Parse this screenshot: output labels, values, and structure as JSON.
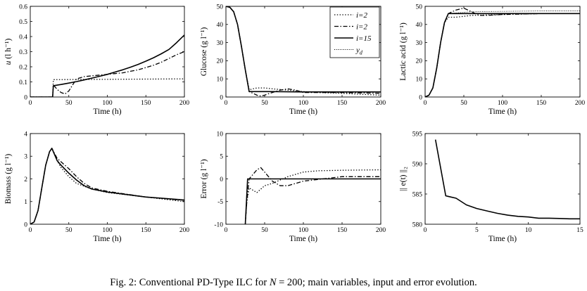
{
  "figure": {
    "caption_prefix": "Fig. 2:",
    "caption_pre_italic": "Conventional PD-Type ILC for ",
    "caption_italic": "N",
    "caption_post_italic": " = 200; main variables, input and error evolution."
  },
  "legend": {
    "entries": [
      {
        "name": "i=2",
        "style": "dotted"
      },
      {
        "name": "i=2",
        "style": "dashdot"
      },
      {
        "name": "i=15",
        "style": "solid"
      },
      {
        "name": "y_d",
        "label": "y",
        "subscript": "d",
        "style": "thin-dotted"
      }
    ]
  },
  "chart_data": [
    {
      "id": "u",
      "type": "line",
      "title": "",
      "ylabel": "u (l h⁻¹)",
      "xlabel": "Time (h)",
      "xlim": [
        0,
        200
      ],
      "ylim": [
        0,
        0.6
      ],
      "xticks": [
        0,
        50,
        100,
        150,
        200
      ],
      "yticks": [
        0,
        0.1,
        0.2,
        0.3,
        0.4,
        0.5,
        0.6
      ],
      "series": [
        {
          "name": "i=2",
          "style": "dotted",
          "x": [
            0,
            29,
            30,
            200
          ],
          "y": [
            0,
            0,
            0.115,
            0.12
          ]
        },
        {
          "name": "i=2",
          "style": "dashdot",
          "x": [
            0,
            29,
            30,
            35,
            40,
            45,
            50,
            55,
            60,
            70,
            80,
            90,
            100,
            110,
            120,
            130,
            140,
            150,
            160,
            170,
            180,
            190,
            200
          ],
          "y": [
            0,
            0,
            0.08,
            0.05,
            0.03,
            0.02,
            0.04,
            0.08,
            0.12,
            0.135,
            0.14,
            0.145,
            0.15,
            0.155,
            0.16,
            0.17,
            0.18,
            0.195,
            0.21,
            0.23,
            0.255,
            0.28,
            0.3
          ]
        },
        {
          "name": "i=15",
          "style": "solid",
          "x": [
            0,
            29,
            30,
            40,
            50,
            60,
            70,
            80,
            90,
            100,
            110,
            120,
            130,
            140,
            150,
            160,
            170,
            180,
            190,
            200
          ],
          "y": [
            0,
            0,
            0.075,
            0.083,
            0.092,
            0.102,
            0.113,
            0.125,
            0.137,
            0.15,
            0.165,
            0.18,
            0.197,
            0.216,
            0.237,
            0.26,
            0.286,
            0.315,
            0.36,
            0.41
          ]
        }
      ]
    },
    {
      "id": "glucose",
      "type": "line",
      "title": "",
      "ylabel": "Glucose (g l⁻¹)",
      "xlabel": "Time (h)",
      "xlim": [
        0,
        200
      ],
      "ylim": [
        0,
        50
      ],
      "xticks": [
        0,
        50,
        100,
        150,
        200
      ],
      "yticks": [
        0,
        10,
        20,
        30,
        40,
        50
      ],
      "series": [
        {
          "name": "i=2",
          "style": "dotted",
          "x": [
            0,
            5,
            10,
            15,
            20,
            25,
            30,
            35,
            40,
            50,
            60,
            80,
            100,
            120,
            150,
            200
          ],
          "y": [
            50,
            49.5,
            47,
            40,
            28,
            15,
            4,
            4.5,
            5,
            5,
            4.5,
            3.8,
            3,
            2.5,
            2,
            1
          ]
        },
        {
          "name": "i=2",
          "style": "dashdot",
          "x": [
            0,
            5,
            10,
            15,
            20,
            25,
            30,
            35,
            40,
            45,
            50,
            55,
            60,
            70,
            80,
            90,
            100,
            120,
            150,
            200
          ],
          "y": [
            50,
            49.5,
            47,
            40,
            28,
            15,
            3,
            2,
            1,
            0.5,
            1,
            1.8,
            2.5,
            3.8,
            4.5,
            3.8,
            2.5,
            2.5,
            2.5,
            2
          ]
        },
        {
          "name": "i=15",
          "style": "solid",
          "x": [
            0,
            5,
            10,
            15,
            20,
            25,
            30,
            40,
            60,
            100,
            150,
            200
          ],
          "y": [
            50,
            49.5,
            47,
            40,
            28,
            15,
            3,
            3,
            3,
            2.8,
            2.8,
            2.8
          ]
        }
      ]
    },
    {
      "id": "lactic",
      "type": "line",
      "title": "",
      "ylabel": "Lactic acid (g l⁻¹)",
      "xlabel": "Time (h)",
      "xlim": [
        0,
        200
      ],
      "ylim": [
        0,
        50
      ],
      "xticks": [
        0,
        50,
        100,
        150,
        200
      ],
      "yticks": [
        0,
        10,
        20,
        30,
        40,
        50
      ],
      "series": [
        {
          "name": "y_d",
          "style": "thin-dotted",
          "x": [
            0,
            5,
            10,
            15,
            20,
            25,
            30,
            60,
            100,
            150,
            200
          ],
          "y": [
            0,
            1,
            5,
            16,
            30,
            41,
            46,
            47,
            47.2,
            47.5,
            47.5
          ]
        },
        {
          "name": "i=2",
          "style": "dotted",
          "x": [
            0,
            5,
            10,
            15,
            20,
            25,
            30,
            40,
            60,
            100,
            150,
            200
          ],
          "y": [
            0,
            1,
            5,
            16,
            30,
            41,
            44,
            44,
            45,
            45.5,
            46,
            46
          ]
        },
        {
          "name": "i=2",
          "style": "dashdot",
          "x": [
            0,
            5,
            10,
            15,
            20,
            25,
            30,
            40,
            50,
            60,
            70,
            80,
            100,
            150,
            200
          ],
          "y": [
            0,
            1,
            5,
            16,
            30,
            41,
            46,
            48,
            49,
            47,
            45,
            45,
            45.5,
            46,
            46
          ]
        },
        {
          "name": "i=15",
          "style": "solid",
          "x": [
            0,
            5,
            10,
            15,
            20,
            25,
            30,
            50,
            100,
            150,
            200
          ],
          "y": [
            0,
            1,
            5,
            16,
            30,
            41,
            46,
            46,
            46,
            46,
            46
          ]
        }
      ]
    },
    {
      "id": "biomass",
      "type": "line",
      "title": "",
      "ylabel": "Biomass (g l⁻¹)",
      "xlabel": "Time (h)",
      "xlim": [
        0,
        200
      ],
      "ylim": [
        0,
        4
      ],
      "xticks": [
        0,
        50,
        100,
        150,
        200
      ],
      "yticks": [
        0,
        1,
        2,
        3,
        4
      ],
      "series": [
        {
          "name": "i=2",
          "style": "dotted",
          "x": [
            0,
            5,
            10,
            15,
            20,
            25,
            28,
            35,
            40,
            50,
            60,
            80,
            100,
            150,
            200
          ],
          "y": [
            0,
            0.1,
            0.6,
            1.6,
            2.6,
            3.2,
            3.35,
            2.8,
            2.5,
            2.1,
            1.8,
            1.55,
            1.4,
            1.2,
            1.0
          ]
        },
        {
          "name": "i=2",
          "style": "dashdot",
          "x": [
            0,
            5,
            10,
            15,
            20,
            25,
            28,
            35,
            40,
            50,
            60,
            70,
            80,
            100,
            150,
            200
          ],
          "y": [
            0,
            0.1,
            0.6,
            1.6,
            2.6,
            3.2,
            3.35,
            2.9,
            2.75,
            2.45,
            2.1,
            1.8,
            1.6,
            1.45,
            1.2,
            1.05
          ]
        },
        {
          "name": "i=15",
          "style": "solid",
          "x": [
            0,
            5,
            10,
            15,
            20,
            25,
            28,
            35,
            40,
            50,
            60,
            70,
            80,
            100,
            150,
            200
          ],
          "y": [
            0,
            0.1,
            0.6,
            1.6,
            2.6,
            3.2,
            3.35,
            2.8,
            2.6,
            2.25,
            1.95,
            1.7,
            1.55,
            1.42,
            1.2,
            1.07
          ]
        }
      ]
    },
    {
      "id": "error",
      "type": "line",
      "title": "",
      "ylabel": "Error (g l⁻¹)",
      "xlabel": "Time (h)",
      "xlim": [
        0,
        200
      ],
      "ylim": [
        -10,
        10
      ],
      "xticks": [
        0,
        50,
        100,
        150,
        200
      ],
      "yticks": [
        -10,
        -5,
        0,
        5,
        10
      ],
      "series": [
        {
          "name": "i=2",
          "style": "dotted",
          "x": [
            25,
            27,
            30,
            40,
            50,
            60,
            80,
            100,
            120,
            150,
            200
          ],
          "y": [
            -10,
            -5,
            -2,
            -3,
            -1.5,
            -1,
            0.5,
            1.5,
            1.8,
            1.9,
            2
          ]
        },
        {
          "name": "i=2",
          "style": "dashdot",
          "x": [
            25,
            27,
            30,
            40,
            45,
            50,
            55,
            60,
            70,
            80,
            100,
            150,
            200
          ],
          "y": [
            -10,
            -5,
            0,
            2,
            2.5,
            1.5,
            0.5,
            -0.5,
            -1.5,
            -1.5,
            -0.5,
            0.5,
            0.5
          ]
        },
        {
          "name": "i=15",
          "style": "solid",
          "x": [
            25,
            28,
            30,
            50,
            100,
            150,
            200
          ],
          "y": [
            -10,
            0,
            0,
            0,
            0,
            0,
            0
          ]
        }
      ]
    },
    {
      "id": "norm",
      "type": "line",
      "title": "",
      "ylabel": "|| e(t) ||₂",
      "xlabel": "Time (h)",
      "xlim": [
        0,
        15
      ],
      "ylim": [
        580,
        595
      ],
      "xticks": [
        0,
        5,
        10,
        15
      ],
      "yticks": [
        580,
        585,
        590,
        595
      ],
      "series": [
        {
          "name": "norm",
          "style": "solid",
          "x": [
            1,
            2,
            3,
            4,
            5,
            6,
            7,
            8,
            9,
            10,
            11,
            12,
            13,
            14,
            15
          ],
          "y": [
            594,
            584.7,
            584.3,
            583.2,
            582.6,
            582.2,
            581.8,
            581.5,
            581.3,
            581.2,
            581.0,
            581.0,
            580.95,
            580.9,
            580.9
          ]
        }
      ]
    }
  ]
}
